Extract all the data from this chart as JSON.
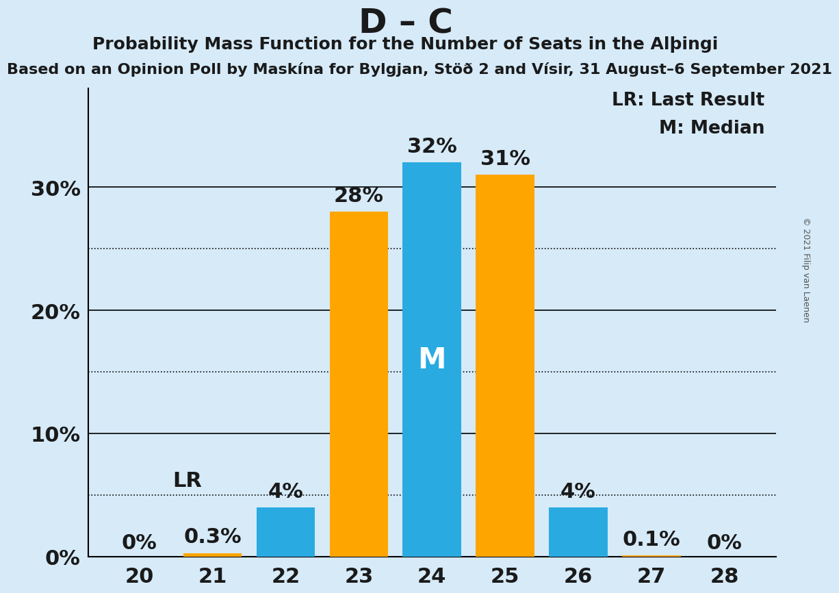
{
  "title": "D – C",
  "subtitle": "Probability Mass Function for the Number of Seats in the Alþingi",
  "source": "Based on an Opinion Poll by Maskína for Bylgjan, Stöð 2 and Vísir, 31 August–6 September 2021",
  "copyright": "© 2021 Filip van Laenen",
  "seats": [
    20,
    21,
    22,
    23,
    24,
    25,
    26,
    27,
    28
  ],
  "values": [
    0.0,
    0.3,
    4.0,
    28.0,
    32.0,
    31.0,
    4.0,
    0.1,
    0.0
  ],
  "labels": [
    "0%",
    "0.3%",
    "4%",
    "28%",
    "32%",
    "31%",
    "4%",
    "0.1%",
    "0%"
  ],
  "bar_colors": [
    "#29ABE2",
    "#FFA500",
    "#29ABE2",
    "#FFA500",
    "#29ABE2",
    "#FFA500",
    "#29ABE2",
    "#FFA500",
    "#29ABE2"
  ],
  "median_seat": 24,
  "lr_value": 5.0,
  "background_color": "#D6EAF8",
  "yticks": [
    0,
    10,
    20,
    30
  ],
  "ytick_labels": [
    "0%",
    "10%",
    "20%",
    "30%"
  ],
  "dotted_yticks": [
    5,
    15,
    25
  ],
  "ylim": [
    0,
    38
  ],
  "title_fontsize": 36,
  "subtitle_fontsize": 18,
  "source_fontsize": 16,
  "bar_label_fontsize": 22,
  "axis_label_fontsize": 22,
  "legend_fontsize": 19
}
